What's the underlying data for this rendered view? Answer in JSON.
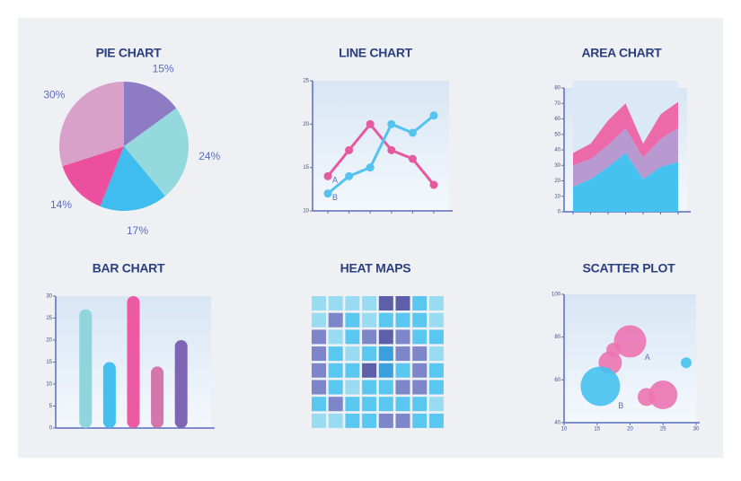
{
  "chart_data": [
    {
      "type": "pie",
      "title": "PIE CHART",
      "values": [
        15,
        24,
        17,
        14,
        30
      ],
      "value_labels": [
        "15%",
        "24%",
        "17%",
        "14%",
        "30%"
      ],
      "colors": [
        "#8d7cc4",
        "#93d9de",
        "#3fbdee",
        "#ec4f9e",
        "#d9a1ca"
      ]
    },
    {
      "type": "line",
      "title": "LINE CHART",
      "categories": [
        null,
        null,
        null,
        null,
        null,
        null
      ],
      "series": [
        {
          "name": "A",
          "color": "#e4599f",
          "values": [
            14,
            17,
            20,
            17,
            16,
            13
          ]
        },
        {
          "name": "B",
          "color": "#55c3ef",
          "values": [
            12,
            14,
            15,
            20,
            19,
            21
          ]
        }
      ],
      "ylim": [
        10,
        25
      ],
      "yticks": [
        10,
        15,
        20,
        25
      ]
    },
    {
      "type": "area",
      "title": "AREA CHART",
      "stacked": true,
      "categories": [
        null,
        null,
        null,
        null,
        null,
        null,
        null
      ],
      "series": [
        {
          "color": "#45c2f0",
          "values": [
            16,
            21,
            29,
            38,
            21,
            29,
            32
          ]
        },
        {
          "color": "#b89ad0",
          "values": [
            14,
            13,
            14,
            16,
            14,
            18,
            22
          ]
        },
        {
          "color": "#ec6aa9",
          "values": [
            8,
            10,
            16,
            16,
            9,
            16,
            17
          ]
        }
      ],
      "ylim": [
        0,
        80
      ],
      "yticks": [
        0,
        10,
        20,
        30,
        40,
        50,
        60,
        70,
        80
      ]
    },
    {
      "type": "bar",
      "title": "BAR CHART",
      "categories": [
        null,
        null,
        null,
        null,
        null
      ],
      "values": [
        27,
        15,
        30,
        14,
        20
      ],
      "colors": [
        "#8fd6dc",
        "#45c0ee",
        "#ec5aa3",
        "#d276ab",
        "#7e64b5"
      ],
      "ylim": [
        0,
        30
      ],
      "yticks": [
        0,
        5,
        10,
        15,
        20,
        25,
        30
      ]
    },
    {
      "type": "heatmap",
      "title": "HEAT MAPS",
      "colorscale": [
        "#99dbf1",
        "#5ac7f0",
        "#3b9fdc",
        "#7c86c9",
        "#5d5fa9"
      ],
      "values": [
        [
          0,
          0,
          0,
          0,
          4,
          4,
          1,
          0
        ],
        [
          0,
          3,
          1,
          0,
          1,
          1,
          1,
          0
        ],
        [
          3,
          0,
          1,
          3,
          4,
          3,
          1,
          1
        ],
        [
          3,
          1,
          0,
          1,
          2,
          3,
          3,
          0
        ],
        [
          3,
          1,
          1,
          4,
          2,
          1,
          3,
          1
        ],
        [
          3,
          1,
          0,
          1,
          1,
          3,
          3,
          1
        ],
        [
          1,
          3,
          1,
          1,
          1,
          1,
          1,
          0
        ],
        [
          0,
          0,
          1,
          1,
          3,
          3,
          1,
          1
        ]
      ]
    },
    {
      "type": "scatter",
      "title": "SCATTER PLOT",
      "series": [
        {
          "name": "A",
          "color": "#ec74b2",
          "x": [
            20,
            17.5,
            17,
            22.5,
            25
          ],
          "values": [
            78,
            74,
            68,
            52,
            53
          ],
          "sizes": [
            18,
            8,
            13,
            10,
            16
          ]
        },
        {
          "name": "B",
          "color": "#45c2f0",
          "x": [
            15.5,
            28.5
          ],
          "values": [
            57,
            68
          ],
          "sizes": [
            22,
            6
          ]
        }
      ],
      "xlim": [
        10,
        30
      ],
      "xticks": [
        10,
        15,
        20,
        25,
        30
      ],
      "ylim": [
        40,
        100
      ],
      "yticks": [
        40,
        60,
        80,
        100
      ]
    }
  ]
}
